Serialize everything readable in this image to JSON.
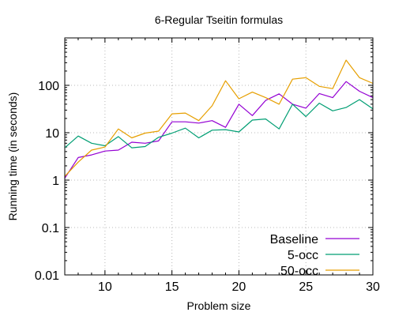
{
  "chart_data": {
    "type": "line",
    "title": "6-Regular Tseitin formulas",
    "xlabel": "Problem size",
    "ylabel": "Running time (in seconds)",
    "xlim": [
      7,
      30
    ],
    "ylim": [
      0.01,
      1000
    ],
    "yscale": "log",
    "grid": true,
    "legend_position": "bottom-right",
    "x_ticks": [
      10,
      15,
      20,
      25,
      30
    ],
    "x_tick_labels": [
      "10",
      "15",
      "20",
      "25",
      "30"
    ],
    "y_ticks": [
      0.01,
      0.1,
      1,
      10,
      100
    ],
    "y_tick_labels": [
      "0.01",
      "0.1",
      "1",
      "10",
      "100"
    ],
    "x": [
      7,
      8,
      9,
      10,
      11,
      12,
      13,
      14,
      15,
      16,
      17,
      18,
      19,
      20,
      21,
      22,
      23,
      24,
      25,
      26,
      27,
      28,
      29,
      30
    ],
    "series": [
      {
        "name": "Baseline",
        "color": "#9400d3",
        "values": [
          1.1,
          3.0,
          3.4,
          4.1,
          4.3,
          6.3,
          6.0,
          6.7,
          17,
          17,
          16,
          18,
          13,
          40,
          23,
          48,
          66,
          40,
          33,
          67,
          55,
          120,
          75,
          55
        ]
      },
      {
        "name": "5-occ",
        "color": "#009e73",
        "values": [
          4.8,
          8.5,
          6.0,
          5.3,
          8.3,
          4.8,
          5.1,
          8.0,
          9.8,
          12.5,
          7.8,
          11.3,
          11.6,
          10.4,
          18.5,
          19.5,
          12.0,
          40,
          22,
          42,
          29,
          34,
          50,
          32
        ]
      },
      {
        "name": "50-occ",
        "color": "#e69f00",
        "values": [
          1.2,
          2.4,
          4.3,
          5.0,
          12.0,
          7.8,
          9.8,
          10.8,
          25,
          26,
          18,
          37,
          125,
          52,
          72,
          55,
          40,
          135,
          145,
          95,
          85,
          340,
          145,
          110
        ]
      }
    ]
  }
}
